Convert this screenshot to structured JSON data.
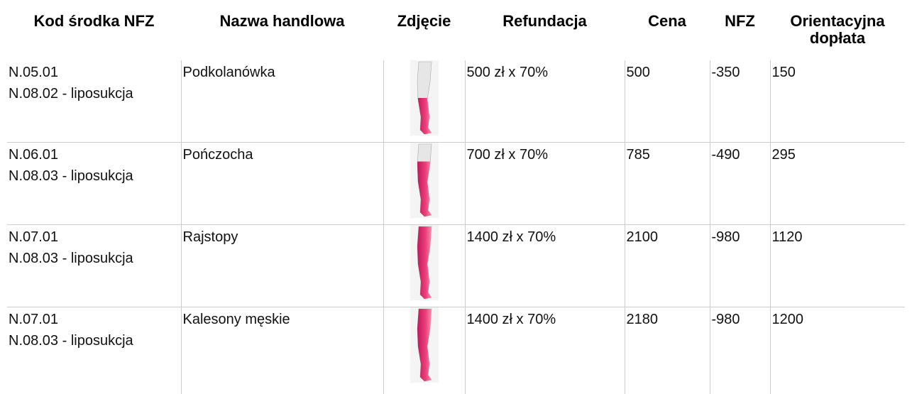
{
  "table": {
    "headers": [
      "Kod środka NFZ",
      "Nazwa handlowa",
      "Zdjęcie",
      "Refundacja",
      "Cena",
      "NFZ",
      "Orientacyjna dopłata"
    ],
    "rows": [
      {
        "code": [
          "N.05.01",
          "N.08.02 - liposukcja"
        ],
        "name": "Podkolanówka",
        "refund": "500 zł x 70%",
        "price": "500",
        "nfz": "-350",
        "copay": "150"
      },
      {
        "code": [
          "N.06.01",
          "N.08.03 - liposukcja"
        ],
        "name": "Pończocha",
        "refund": "700 zł x 70%",
        "price": "785",
        "nfz": "-490",
        "copay": "295"
      },
      {
        "code": [
          "N.07.01",
          "N.08.03 - liposukcja"
        ],
        "name": "Rajstopy",
        "refund": "1400 zł x 70%",
        "price": "2100",
        "nfz": "-980",
        "copay": "1120"
      },
      {
        "code": [
          "N.07.01",
          "N.08.03 - liposukcja"
        ],
        "name": "Kalesony męskie",
        "refund": "1400 zł x 70%",
        "price": "2180",
        "nfz": "-980",
        "copay": "1200"
      }
    ]
  }
}
